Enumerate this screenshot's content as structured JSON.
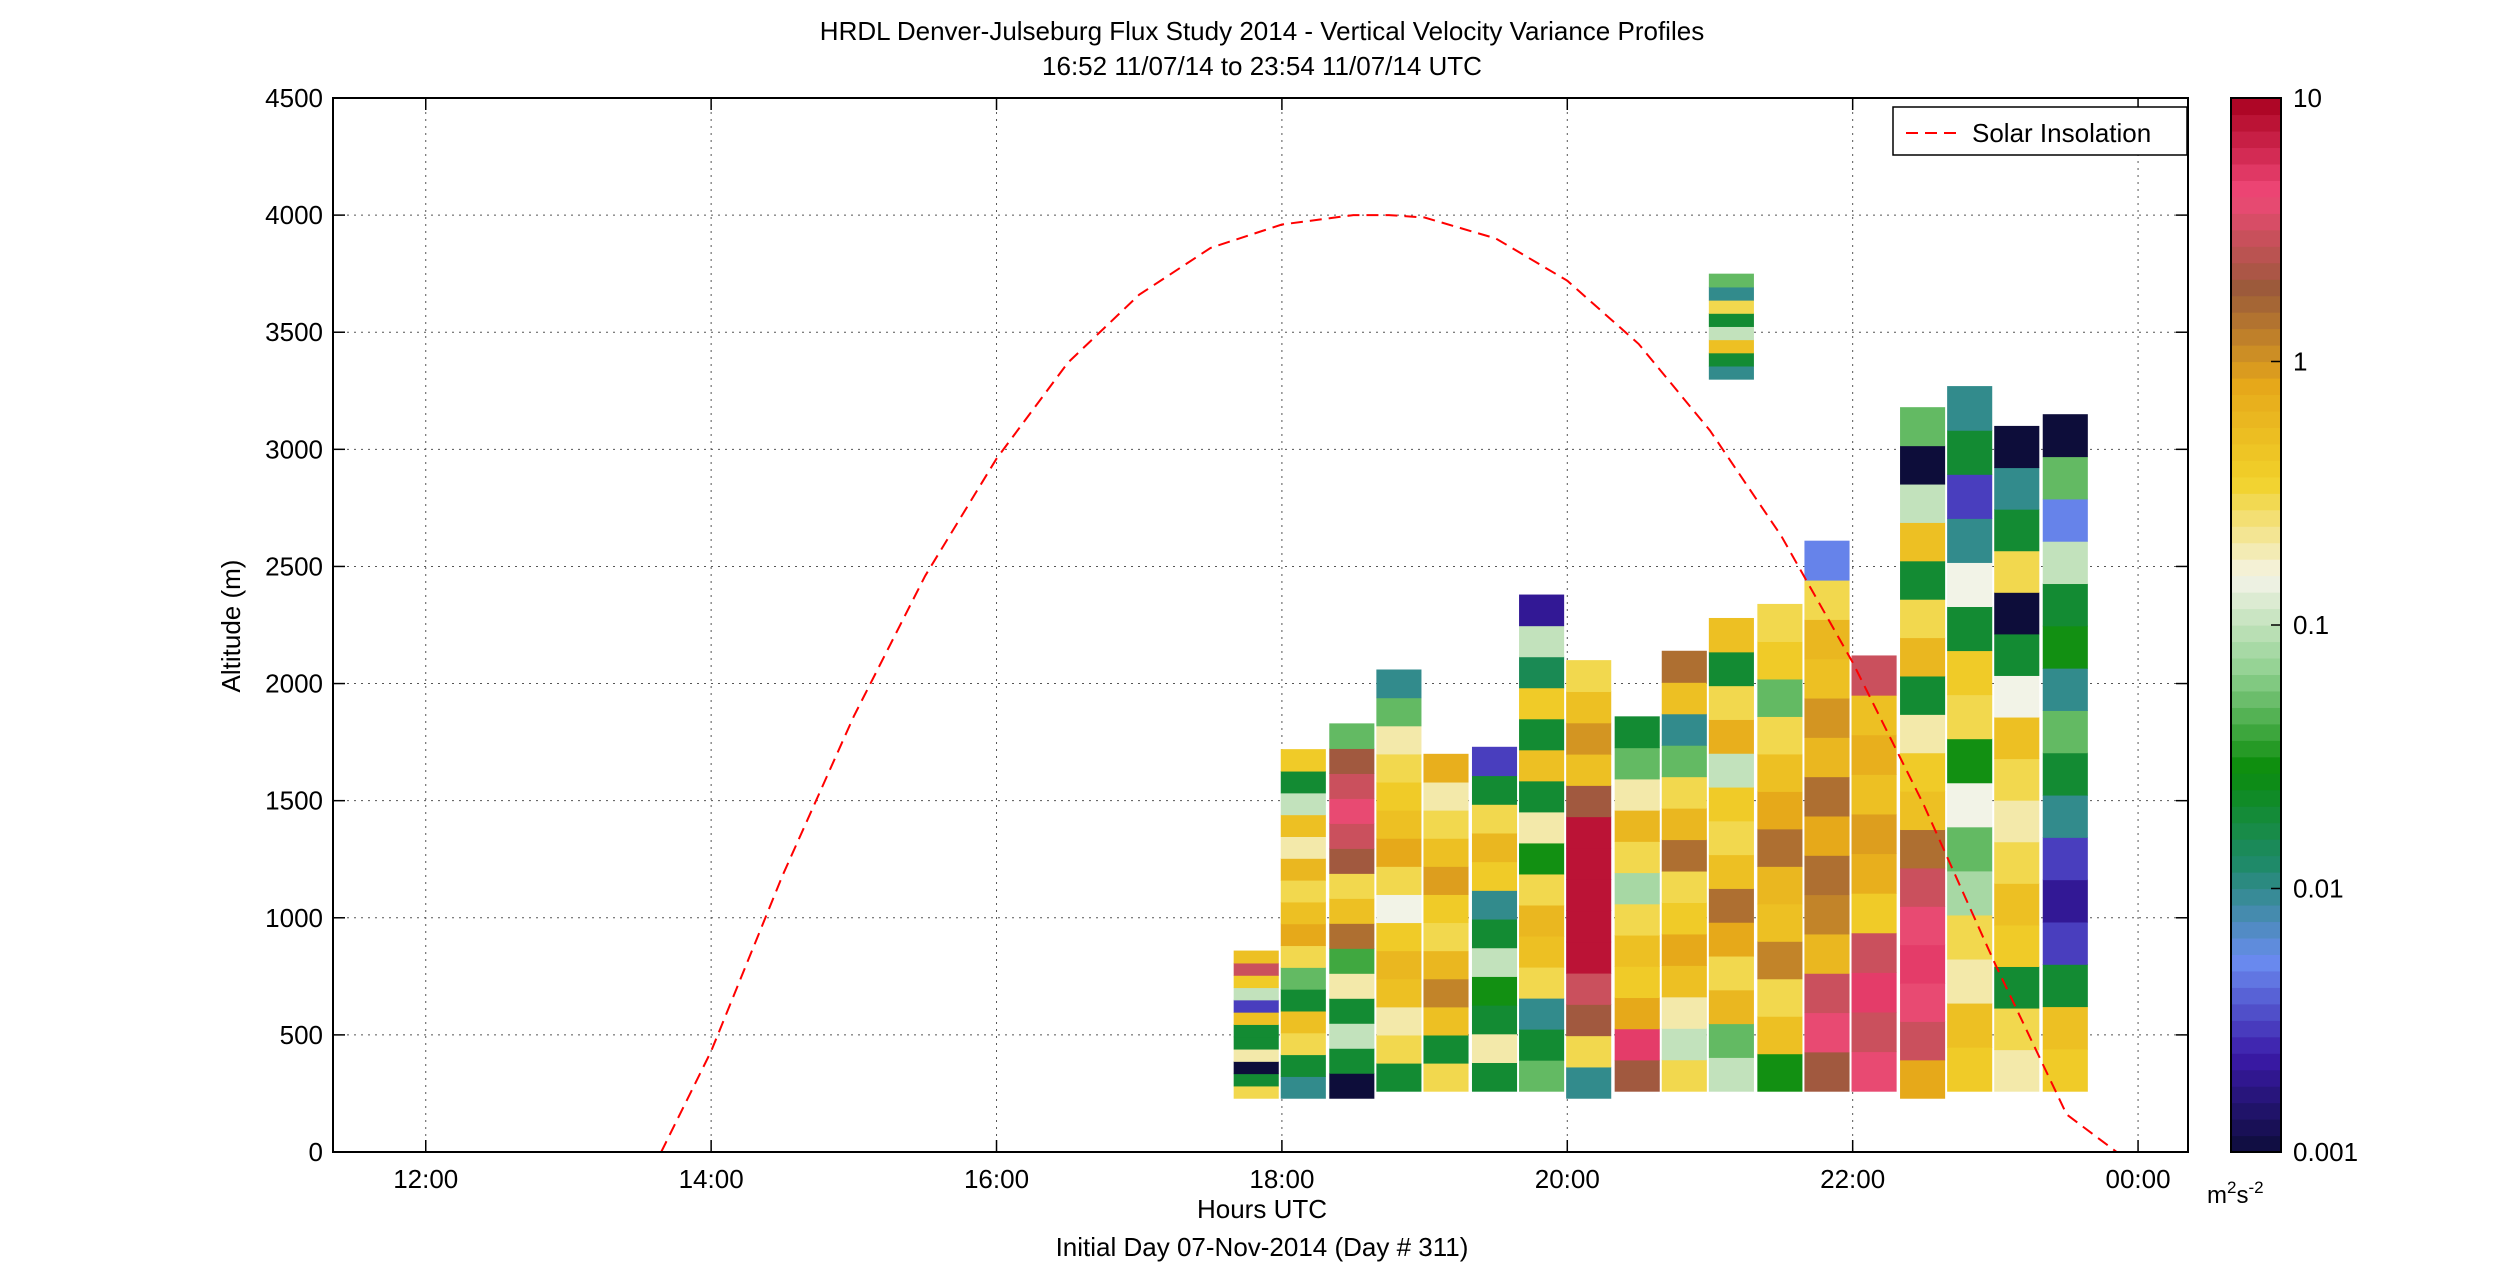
{
  "chart_data": {
    "type": "heatmap",
    "title": "HRDL Denver-Julseburg Flux Study 2014 - Vertical Velocity Variance Profiles",
    "subtitle": "16:52 11/07/14 to 23:54 11/07/14  UTC",
    "xlabel": "Hours UTC",
    "xlabel2": "Initial Day 07-Nov-2014 (Day # 311)",
    "ylabel": "Altitude (m)",
    "xlim": [
      11.35,
      24.35
    ],
    "ylim": [
      0,
      4500
    ],
    "xticks": [
      12,
      14,
      16,
      18,
      20,
      22,
      24
    ],
    "xtick_labels": [
      "12:00",
      "14:00",
      "16:00",
      "18:00",
      "20:00",
      "22:00",
      "00:00"
    ],
    "yticks": [
      0,
      500,
      1000,
      1500,
      2000,
      2500,
      3000,
      3500,
      4000,
      4500
    ],
    "ytick_labels": [
      "0",
      "500",
      "1000",
      "1500",
      "2000",
      "2500",
      "3000",
      "3500",
      "4000",
      "4500"
    ],
    "grid": true,
    "legend": {
      "position": "top-right",
      "entries": [
        "Solar Insolation"
      ]
    },
    "colorbar": {
      "scale": "log",
      "range": [
        0.001,
        10
      ],
      "ticks": [
        0.001,
        0.01,
        0.1,
        1,
        10
      ],
      "tick_labels": [
        "0.001",
        "0.01",
        "0.1",
        "1",
        "10"
      ],
      "units": "m²s⁻²",
      "unit_base": "m",
      "unit_exp1": "2",
      "unit_mid": "s",
      "unit_exp2": "-2",
      "palette": [
        "#0d0d3a",
        "#3a1aa8",
        "#6a8cf0",
        "#1f8a6a",
        "#0a8c0a",
        "#8fd08f",
        "#f4f4e8",
        "#f2d22a",
        "#e6a81a",
        "#9a5a3a",
        "#f04878",
        "#a8001e"
      ]
    },
    "series": [
      {
        "name": "Solar Insolation",
        "type": "line",
        "color": "#ff0000",
        "dash": true,
        "x": [
          13.65,
          14.0,
          14.5,
          15.0,
          15.5,
          16.0,
          16.5,
          17.0,
          17.5,
          18.0,
          18.5,
          18.75,
          19.0,
          19.5,
          20.0,
          20.5,
          21.0,
          21.5,
          22.0,
          22.5,
          23.0,
          23.5,
          23.85
        ],
        "y": [
          0,
          430,
          1180,
          1860,
          2460,
          2960,
          3370,
          3660,
          3860,
          3960,
          4000,
          4000,
          3990,
          3900,
          3720,
          3450,
          3080,
          2630,
          2090,
          1480,
          800,
          160,
          0
        ]
      }
    ],
    "columns": [
      {
        "time": 17.82,
        "low": 230,
        "high": 860,
        "levels": [
          0.3,
          0.02,
          0.001,
          0.2,
          0.02,
          0.02,
          0.5,
          0.003,
          0.1,
          0.4,
          3,
          0.5
        ]
      },
      {
        "time": 18.15,
        "low": 230,
        "high": 1720,
        "levels": [
          0.01,
          0.02,
          0.3,
          0.5,
          0.02,
          0.05,
          0.3,
          0.8,
          0.5,
          0.3,
          0.6,
          0.2,
          0.5,
          0.1,
          0.02,
          0.4
        ]
      },
      {
        "time": 18.49,
        "low": 230,
        "high": 1830,
        "levels": [
          0.001,
          0.02,
          0.1,
          0.02,
          0.2,
          0.04,
          1.5,
          0.5,
          0.3,
          2,
          3,
          4,
          3,
          2,
          0.05
        ]
      },
      {
        "time": 18.82,
        "low": 260,
        "high": 2060,
        "levels": [
          0.02,
          0.3,
          0.2,
          0.5,
          0.6,
          0.4,
          0.15,
          0.3,
          0.8,
          0.5,
          0.4,
          0.3,
          0.2,
          0.05,
          0.01
        ]
      },
      {
        "time": 19.15,
        "low": 260,
        "high": 1700,
        "levels": [
          0.3,
          0.02,
          0.5,
          1.2,
          0.6,
          0.3,
          0.4,
          0.9,
          0.5,
          0.3,
          0.2,
          0.7
        ]
      },
      {
        "time": 19.49,
        "low": 260,
        "high": 1730,
        "levels": [
          0.02,
          0.2,
          0.02,
          0.03,
          0.1,
          0.02,
          0.01,
          0.4,
          0.6,
          0.3,
          0.02,
          0.003
        ]
      },
      {
        "time": 19.82,
        "low": 260,
        "high": 2380,
        "levels": [
          0.05,
          0.02,
          0.01,
          0.3,
          0.5,
          0.6,
          0.3,
          0.03,
          0.2,
          0.02,
          0.5,
          0.02,
          0.4,
          0.015,
          0.1,
          0.002
        ]
      },
      {
        "time": 20.15,
        "low": 230,
        "high": 2100,
        "levels": [
          0.01,
          0.3,
          2,
          3,
          8,
          8,
          8,
          8,
          8,
          2,
          0.5,
          1,
          0.5,
          0.3
        ]
      },
      {
        "time": 20.49,
        "low": 260,
        "high": 1860,
        "levels": [
          2,
          5,
          0.8,
          0.4,
          0.5,
          0.3,
          0.08,
          0.3,
          0.6,
          0.2,
          0.05,
          0.02
        ]
      },
      {
        "time": 20.82,
        "low": 260,
        "high": 2140,
        "levels": [
          0.3,
          0.1,
          0.2,
          0.5,
          0.8,
          0.4,
          0.3,
          1.5,
          0.6,
          0.3,
          0.05,
          0.01,
          0.5,
          1.5
        ]
      },
      {
        "time": 21.15,
        "low": 260,
        "high": 2280,
        "levels": [
          0.1,
          0.05,
          0.6,
          0.3,
          0.8,
          1.5,
          0.5,
          0.3,
          0.4,
          0.1,
          0.7,
          0.3,
          0.02,
          0.5
        ]
      },
      {
        "time": 21.49,
        "low": 260,
        "high": 2340,
        "levels": [
          0.03,
          0.5,
          0.3,
          1.2,
          0.5,
          0.6,
          1.5,
          0.8,
          0.5,
          0.3,
          0.05,
          0.4,
          0.3
        ]
      },
      {
        "time": 21.82,
        "low": 260,
        "high": 2610,
        "levels": [
          2,
          4,
          3,
          0.6,
          1.2,
          1.5,
          0.8,
          1.5,
          0.6,
          1,
          0.5,
          0.6,
          0.3,
          0.005
        ]
      },
      {
        "time": 22.15,
        "low": 260,
        "high": 2120,
        "levels": [
          4,
          3,
          5,
          3,
          0.4,
          0.7,
          0.9,
          0.5,
          0.7,
          0.5,
          3
        ]
      },
      {
        "time": 22.49,
        "low": 230,
        "high": 3180,
        "levels": [
          0.8,
          3,
          4,
          5,
          4,
          3,
          1.5,
          0.5,
          0.4,
          0.2,
          0.02,
          0.6,
          0.3,
          0.02,
          0.5,
          0.1,
          0.001,
          0.05
        ]
      },
      {
        "time": 22.82,
        "low": 260,
        "high": 3270,
        "levels": [
          0.4,
          0.5,
          0.2,
          0.3,
          0.08,
          0.05,
          0.15,
          0.03,
          0.3,
          0.4,
          0.02,
          0.15,
          0.01,
          0.003,
          0.02,
          0.01
        ]
      },
      {
        "time": 23.15,
        "low": 260,
        "high": 3100,
        "levels": [
          0.2,
          0.3,
          0.02,
          0.4,
          0.5,
          0.3,
          0.2,
          0.3,
          0.5,
          0.15,
          0.02,
          0.001,
          0.3,
          0.02,
          0.01,
          0.001
        ]
      },
      {
        "time": 23.49,
        "low": 260,
        "high": 3150,
        "levels": [
          0.4,
          0.5,
          0.02,
          0.003,
          0.002,
          0.003,
          0.01,
          0.02,
          0.05,
          0.01,
          0.03,
          0.02,
          0.1,
          0.005,
          0.05,
          0.001
        ]
      },
      {
        "time": 21.15,
        "low": 3300,
        "high": 3750,
        "levels": [
          0.01,
          0.02,
          0.5,
          0.1,
          0.02,
          0.3,
          0.01,
          0.05
        ]
      }
    ]
  }
}
